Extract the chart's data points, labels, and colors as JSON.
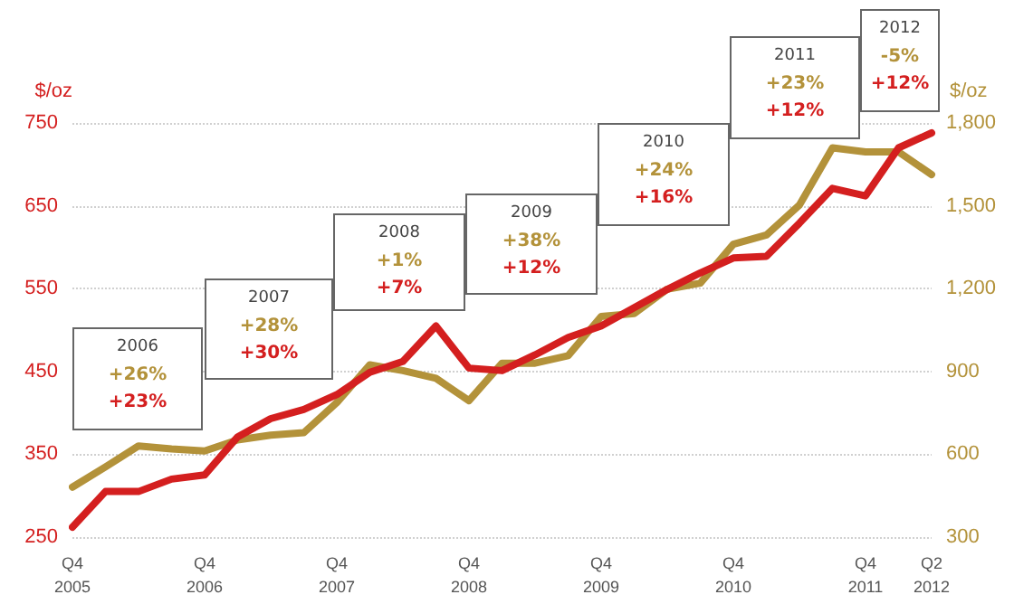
{
  "chart_data": {
    "type": "line",
    "categories": [
      "Q4 2005",
      null,
      null,
      null,
      "Q4 2006",
      null,
      null,
      null,
      "Q4 2007",
      null,
      null,
      null,
      "Q4 2008",
      null,
      null,
      null,
      "Q4 2009",
      null,
      null,
      null,
      "Q4 2010",
      null,
      null,
      null,
      "Q4 2011",
      null,
      "Q2 2012"
    ],
    "ylabel": "$/oz",
    "y2label": "$/oz",
    "ylim": [
      250,
      750
    ],
    "yticks": [
      250,
      350,
      450,
      550,
      650,
      750
    ],
    "y2lim": [
      300,
      1800
    ],
    "y2ticks": [
      300,
      600,
      900,
      {
        "value": 1200,
        "label": "1,200"
      },
      {
        "value": 1500,
        "label": "1,500"
      },
      {
        "value": 1800,
        "label": "1,800"
      }
    ],
    "series": [
      {
        "axis": "y2",
        "color": "#b3923a",
        "values": [
          481,
          554,
          630,
          619,
          612,
          652,
          669,
          678,
          787,
          924,
          903,
          875,
          794,
          930,
          930,
          957,
          1099,
          1110,
          1198,
          1220,
          1361,
          1394,
          1503,
          1710,
          1695,
          1695,
          1613
        ]
      },
      {
        "color": "#d41f1f",
        "values": [
          262,
          305,
          305,
          320,
          325,
          371,
          393,
          404,
          422,
          449,
          462,
          505,
          454,
          451,
          470,
          491,
          505,
          527,
          549,
          569,
          587,
          589,
          629,
          671,
          662,
          720,
          738
        ]
      }
    ],
    "annotations": [
      "2006\n+26%\n+23%",
      "2007\n+28%\n+30%",
      "2008\n+1%\n+7%",
      "2009\n+38%\n+12%",
      "2010\n+24%\n+16%",
      "2011\n+23%\n+12%",
      "2012\n-5%\n+12%"
    ],
    "grid": "y",
    "marker": "none",
    "line_style": "solid"
  }
}
